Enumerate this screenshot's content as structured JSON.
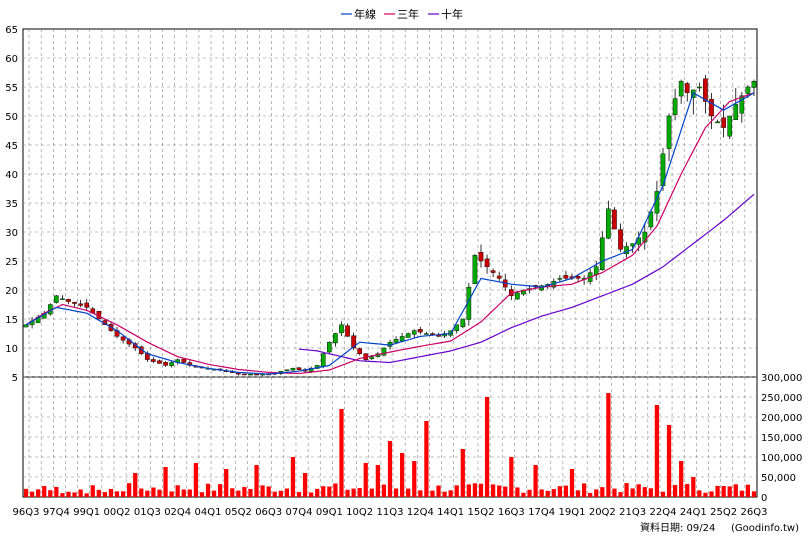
{
  "legend": [
    {
      "name": "年線",
      "color": "#0044cc"
    },
    {
      "name": "三年",
      "color": "#cc0066"
    },
    {
      "name": "十年",
      "color": "#6600cc"
    }
  ],
  "footer": {
    "date_text": "資料日期: 09/24",
    "site_text": "(Goodinfo.tw)"
  },
  "colors": {
    "up_candle": "#00aa00",
    "down_candle": "#cc0000",
    "volume_bar": "#ff0000",
    "grid": "#888888"
  },
  "chart_data": {
    "type": "candlestick+bar",
    "price_axis": {
      "min": 5,
      "max": 65,
      "ticks": [
        5,
        10,
        15,
        20,
        25,
        30,
        35,
        40,
        45,
        50,
        55,
        60,
        65
      ]
    },
    "volume_axis": {
      "min": 0,
      "max": 300000,
      "ticks": [
        0,
        50000,
        100000,
        150000,
        200000,
        250000,
        300000
      ],
      "tick_labels": [
        "0",
        "50,000",
        "100,000",
        "150,000",
        "200,000",
        "250,000",
        "300,000"
      ]
    },
    "x_tick_labels": [
      "96Q3",
      "97Q4",
      "99Q1",
      "00Q2",
      "01Q3",
      "02Q4",
      "04Q1",
      "05Q2",
      "06Q3",
      "07Q4",
      "09Q1",
      "10Q2",
      "11Q3",
      "12Q4",
      "14Q1",
      "15Q2",
      "16Q3",
      "17Q4",
      "19Q1",
      "20Q2",
      "21Q3",
      "22Q4",
      "24Q1",
      "25Q2",
      "26Q3"
    ],
    "period_count": 121,
    "close_anchors": [
      [
        0,
        14
      ],
      [
        3,
        16
      ],
      [
        5,
        19
      ],
      [
        7,
        18
      ],
      [
        10,
        17
      ],
      [
        12,
        15
      ],
      [
        15,
        12
      ],
      [
        18,
        10
      ],
      [
        20,
        8
      ],
      [
        23,
        7
      ],
      [
        25,
        8
      ],
      [
        27,
        7
      ],
      [
        30,
        6.5
      ],
      [
        33,
        6
      ],
      [
        35,
        5.5
      ],
      [
        38,
        5.5
      ],
      [
        40,
        5.5
      ],
      [
        42,
        6
      ],
      [
        44,
        6.5
      ],
      [
        46,
        6
      ],
      [
        48,
        7
      ],
      [
        50,
        11
      ],
      [
        52,
        14
      ],
      [
        54,
        10
      ],
      [
        56,
        8
      ],
      [
        58,
        9
      ],
      [
        60,
        11
      ],
      [
        62,
        12
      ],
      [
        64,
        13
      ],
      [
        66,
        12.5
      ],
      [
        68,
        12
      ],
      [
        70,
        13
      ],
      [
        72,
        15
      ],
      [
        74,
        26
      ],
      [
        76,
        24
      ],
      [
        78,
        22
      ],
      [
        80,
        19
      ],
      [
        82,
        20
      ],
      [
        84,
        20.5
      ],
      [
        86,
        21
      ],
      [
        88,
        22
      ],
      [
        90,
        22
      ],
      [
        92,
        22
      ],
      [
        94,
        24
      ],
      [
        96,
        34
      ],
      [
        98,
        27
      ],
      [
        100,
        28
      ],
      [
        102,
        30
      ],
      [
        104,
        37
      ],
      [
        106,
        50
      ],
      [
        108,
        56
      ],
      [
        109,
        54
      ],
      [
        111,
        55
      ],
      [
        113,
        50
      ],
      [
        115,
        48
      ],
      [
        117,
        52
      ],
      [
        119,
        55
      ],
      [
        120,
        56
      ]
    ],
    "yearly_ma_anchors": [
      [
        0,
        14
      ],
      [
        5,
        17
      ],
      [
        10,
        16
      ],
      [
        15,
        13
      ],
      [
        20,
        9
      ],
      [
        25,
        7.5
      ],
      [
        30,
        6.5
      ],
      [
        35,
        5.8
      ],
      [
        40,
        5.5
      ],
      [
        45,
        6
      ],
      [
        50,
        7
      ],
      [
        55,
        11
      ],
      [
        60,
        10.5
      ],
      [
        65,
        12
      ],
      [
        70,
        12.5
      ],
      [
        75,
        22
      ],
      [
        80,
        21
      ],
      [
        85,
        20.5
      ],
      [
        90,
        22
      ],
      [
        95,
        25
      ],
      [
        100,
        27
      ],
      [
        105,
        38
      ],
      [
        110,
        54
      ],
      [
        115,
        51
      ],
      [
        120,
        54
      ]
    ],
    "three_year_ma_anchors": [
      [
        0,
        14
      ],
      [
        3,
        16
      ],
      [
        6,
        17.5
      ],
      [
        10,
        16.5
      ],
      [
        15,
        14
      ],
      [
        20,
        11
      ],
      [
        25,
        8.5
      ],
      [
        30,
        7.2
      ],
      [
        35,
        6.3
      ],
      [
        40,
        5.8
      ],
      [
        45,
        5.6
      ],
      [
        50,
        6.2
      ],
      [
        55,
        8.2
      ],
      [
        60,
        9.3
      ],
      [
        65,
        10.3
      ],
      [
        70,
        11.2
      ],
      [
        75,
        14.5
      ],
      [
        80,
        19.5
      ],
      [
        85,
        20.5
      ],
      [
        90,
        21
      ],
      [
        95,
        23
      ],
      [
        100,
        26
      ],
      [
        104,
        31
      ],
      [
        108,
        40
      ],
      [
        112,
        48
      ],
      [
        116,
        52.5
      ],
      [
        120,
        54
      ]
    ],
    "ten_year_ma_anchors": [
      [
        45,
        9.8
      ],
      [
        48,
        9.5
      ],
      [
        50,
        9
      ],
      [
        55,
        7.8
      ],
      [
        60,
        7.5
      ],
      [
        65,
        8.5
      ],
      [
        70,
        9.5
      ],
      [
        75,
        11
      ],
      [
        80,
        13.5
      ],
      [
        85,
        15.5
      ],
      [
        90,
        17
      ],
      [
        95,
        19
      ],
      [
        100,
        21
      ],
      [
        105,
        24
      ],
      [
        110,
        28
      ],
      [
        115,
        32
      ],
      [
        120,
        36.5
      ]
    ],
    "volume_spikes": [
      [
        18,
        60000
      ],
      [
        23,
        75000
      ],
      [
        28,
        85000
      ],
      [
        33,
        70000
      ],
      [
        38,
        80000
      ],
      [
        44,
        100000
      ],
      [
        46,
        60000
      ],
      [
        52,
        220000
      ],
      [
        56,
        85000
      ],
      [
        58,
        80000
      ],
      [
        60,
        140000
      ],
      [
        62,
        110000
      ],
      [
        64,
        90000
      ],
      [
        66,
        190000
      ],
      [
        72,
        120000
      ],
      [
        76,
        250000
      ],
      [
        80,
        100000
      ],
      [
        84,
        80000
      ],
      [
        90,
        70000
      ],
      [
        96,
        260000
      ],
      [
        104,
        230000
      ],
      [
        106,
        180000
      ],
      [
        108,
        90000
      ],
      [
        110,
        50000
      ]
    ]
  }
}
